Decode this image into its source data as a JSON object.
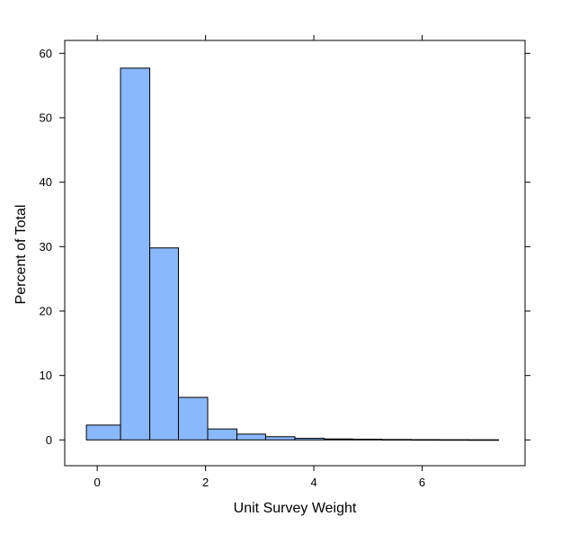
{
  "chart_data": {
    "type": "bar",
    "subtype": "histogram",
    "xlabel": "Unit Survey Weight",
    "ylabel": "Percent of Total",
    "xlim": [
      -0.6,
      7.9
    ],
    "ylim": [
      -4,
      62
    ],
    "x_ticks": [
      0,
      2,
      4,
      6
    ],
    "x_tick_labels": [
      "0",
      "2",
      "4",
      "6"
    ],
    "y_ticks": [
      0,
      10,
      20,
      30,
      40,
      50,
      60
    ],
    "y_tick_labels": [
      "0",
      "10",
      "20",
      "30",
      "40",
      "50",
      "60"
    ],
    "bin_edges": [
      -0.2,
      0.43,
      0.97,
      1.5,
      2.04,
      2.58,
      3.11,
      3.65,
      4.19,
      4.72,
      5.26,
      5.8,
      6.33,
      6.87,
      7.41
    ],
    "values": [
      2.3,
      57.7,
      29.8,
      6.6,
      1.7,
      0.9,
      0.5,
      0.25,
      0.15,
      0.1,
      0.06,
      0.04,
      0.03,
      0.02
    ],
    "grid": false,
    "legend": "none",
    "colors": {
      "bar_fill": "#8ab8fe",
      "bar_stroke": "#000000",
      "axis": "#000000"
    }
  }
}
